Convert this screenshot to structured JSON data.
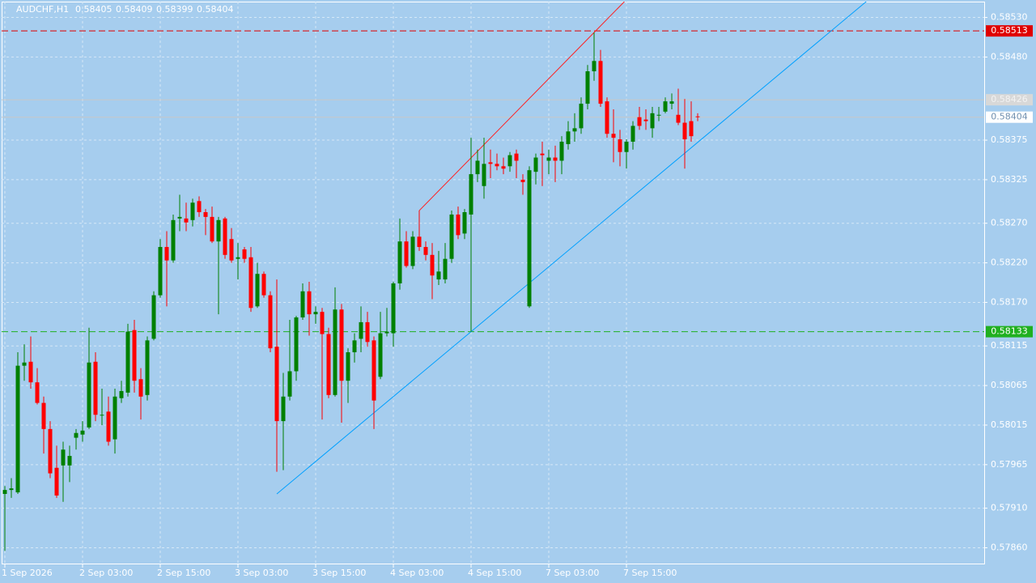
{
  "chart_data": {
    "type": "candlestick",
    "symbol": "AUDCHF,H1",
    "header_ohlc": [
      0.58405,
      0.58409,
      0.58399,
      0.58404
    ],
    "open": [
      0.57928,
      0.57933,
      0.5793,
      0.5809,
      0.58095,
      0.58069,
      0.58043,
      0.5801,
      0.57961,
      0.57964,
      0.57964,
      0.57999,
      0.58003,
      0.58012,
      0.58095,
      0.58028,
      0.58032,
      0.57997,
      0.58049,
      0.58056,
      0.58135,
      0.58073,
      0.58053,
      0.58124,
      0.58179,
      0.5824,
      0.58223,
      0.58276,
      0.58276,
      0.58274,
      0.58298,
      0.58284,
      0.58278,
      0.58247,
      0.58276,
      0.5825,
      0.58225,
      0.58237,
      0.58227,
      0.58165,
      0.58206,
      0.58179,
      0.58114,
      0.5802,
      0.58051,
      0.58083,
      0.58151,
      0.58184,
      0.58155,
      0.58158,
      0.5813,
      0.58053,
      0.58161,
      0.58071,
      0.58107,
      0.58124,
      0.58145,
      0.58122,
      0.58076,
      0.58131,
      0.58131,
      0.58194,
      0.58247,
      0.58216,
      0.58253,
      0.5824,
      0.5823,
      0.58199,
      0.58199,
      0.58225,
      0.58281,
      0.58257,
      0.58281,
      0.58332,
      0.58317,
      0.58347,
      0.58345,
      0.58342,
      0.58342,
      0.58358,
      0.58325,
      0.58165,
      0.58335,
      0.58358,
      0.58349,
      0.58353,
      0.58349,
      0.5837,
      0.58386,
      0.5839,
      0.58421,
      0.58462,
      0.58475,
      0.58424,
      0.58383,
      0.58376,
      0.5836,
      0.58373,
      0.58404,
      0.58401,
      0.5839,
      0.58407,
      0.58411,
      0.58421,
      0.58407,
      0.58397,
      0.58399,
      0.58405
    ],
    "high": [
      0.57938,
      0.57948,
      0.58107,
      0.58117,
      0.58127,
      0.58087,
      0.58051,
      0.5802,
      0.57989,
      0.57994,
      0.57989,
      0.5801,
      0.5802,
      0.58138,
      0.58107,
      0.58061,
      0.58051,
      0.58061,
      0.58071,
      0.58143,
      0.58148,
      0.58087,
      0.58127,
      0.58184,
      0.5825,
      0.5826,
      0.58281,
      0.58306,
      0.58296,
      0.58301,
      0.58304,
      0.58288,
      0.58291,
      0.58278,
      0.58278,
      0.58264,
      0.58245,
      0.5824,
      0.5824,
      0.5822,
      0.58209,
      0.58184,
      0.58199,
      0.58081,
      0.58148,
      0.58153,
      0.58194,
      0.58196,
      0.58165,
      0.58163,
      0.58138,
      0.58189,
      0.58168,
      0.58112,
      0.58131,
      0.58165,
      0.58158,
      0.58127,
      0.58158,
      0.58163,
      0.58196,
      0.58276,
      0.5826,
      0.5826,
      0.58286,
      0.58247,
      0.58245,
      0.58235,
      0.58245,
      0.58286,
      0.58291,
      0.58288,
      0.58378,
      0.58363,
      0.58378,
      0.58363,
      0.58358,
      0.58353,
      0.5836,
      0.58363,
      0.58332,
      0.58342,
      0.58358,
      0.58373,
      0.58363,
      0.58368,
      0.5838,
      0.58399,
      0.58409,
      0.58429,
      0.5847,
      0.58511,
      0.58489,
      0.58429,
      0.58414,
      0.58388,
      0.58376,
      0.58399,
      0.58417,
      0.58414,
      0.58417,
      0.58417,
      0.58429,
      0.58434,
      0.5844,
      0.58427,
      0.58424,
      0.58409
    ],
    "low": [
      0.57856,
      0.57923,
      0.57928,
      0.58071,
      0.58061,
      0.58041,
      0.57979,
      0.57948,
      0.57923,
      0.57918,
      0.57943,
      0.57984,
      0.57994,
      0.5801,
      0.5802,
      0.58015,
      0.57989,
      0.57979,
      0.58043,
      0.58051,
      0.58056,
      0.58022,
      0.58046,
      0.58122,
      0.58176,
      0.58165,
      0.5822,
      0.5826,
      0.5826,
      0.58266,
      0.58278,
      0.58255,
      0.58245,
      0.58155,
      0.58225,
      0.5822,
      0.58199,
      0.5822,
      0.58158,
      0.58163,
      0.58176,
      0.58107,
      0.57956,
      0.57958,
      0.58046,
      0.58071,
      0.58148,
      0.58128,
      0.58143,
      0.58022,
      0.58049,
      0.58051,
      0.58018,
      0.58043,
      0.58094,
      0.58107,
      0.58114,
      0.5801,
      0.58073,
      0.58127,
      0.58114,
      0.58186,
      0.58214,
      0.58212,
      0.58235,
      0.58223,
      0.58174,
      0.58192,
      0.58194,
      0.5822,
      0.5825,
      0.5825,
      0.58133,
      0.58322,
      0.58301,
      0.58327,
      0.58337,
      0.58332,
      0.58335,
      0.58327,
      0.58306,
      0.58163,
      0.58319,
      0.58317,
      0.58332,
      0.58322,
      0.58332,
      0.58363,
      0.58373,
      0.58383,
      0.58414,
      0.5845,
      0.58417,
      0.58378,
      0.58347,
      0.58342,
      0.58339,
      0.58363,
      0.58388,
      0.58388,
      0.58378,
      0.58399,
      0.58409,
      0.58414,
      0.58394,
      0.58339,
      0.58373,
      0.58399
    ],
    "close": [
      0.57933,
      0.57935,
      0.5809,
      0.58094,
      0.58069,
      0.58043,
      0.5801,
      0.57954,
      0.57926,
      0.57984,
      0.57976,
      0.58005,
      0.58008,
      0.58094,
      0.58028,
      0.58028,
      0.57994,
      0.58051,
      0.58058,
      0.58133,
      0.58071,
      0.58051,
      0.58122,
      0.58179,
      0.5824,
      0.58223,
      0.58274,
      0.58278,
      0.58271,
      0.58296,
      0.58284,
      0.58278,
      0.58247,
      0.58274,
      0.5823,
      0.58223,
      0.58227,
      0.58225,
      0.58163,
      0.58206,
      0.58179,
      0.58112,
      0.5802,
      0.58051,
      0.58083,
      0.58151,
      0.58184,
      0.58155,
      0.58158,
      0.5813,
      0.58053,
      0.58161,
      0.58071,
      0.58107,
      0.58122,
      0.58145,
      0.5812,
      0.58046,
      0.58131,
      0.58133,
      0.58194,
      0.58247,
      0.58216,
      0.58253,
      0.5824,
      0.5823,
      0.58204,
      0.58209,
      0.58225,
      0.58281,
      0.58255,
      0.58284,
      0.58332,
      0.58349,
      0.58345,
      0.58345,
      0.58342,
      0.58339,
      0.58356,
      0.58349,
      0.58322,
      0.58337,
      0.58353,
      0.58356,
      0.58353,
      0.58349,
      0.58373,
      0.58386,
      0.5839,
      0.58421,
      0.58462,
      0.58475,
      0.58421,
      0.58383,
      0.58378,
      0.5836,
      0.58373,
      0.58393,
      0.58393,
      0.58399,
      0.58409,
      0.58407,
      0.58424,
      0.58424,
      0.58397,
      0.58376,
      0.5838,
      0.58404
    ],
    "up_color": "#008000",
    "down_color": "#ff0000",
    "ylim": [
      0.57839,
      0.5855
    ],
    "yticks": [
      {
        "value": 0.5853,
        "label": "0.58530"
      },
      {
        "value": 0.5848,
        "label": "0.58480"
      },
      {
        "value": 0.58375,
        "label": "0.58375"
      },
      {
        "value": 0.58325,
        "label": "0.58325"
      },
      {
        "value": 0.5827,
        "label": "0.58270"
      },
      {
        "value": 0.5822,
        "label": "0.58220"
      },
      {
        "value": 0.5817,
        "label": "0.58170"
      },
      {
        "value": 0.58115,
        "label": "0.58115"
      },
      {
        "value": 0.58065,
        "label": "0.58065"
      },
      {
        "value": 0.58015,
        "label": "0.58015"
      },
      {
        "value": 0.57965,
        "label": "0.57965"
      },
      {
        "value": 0.5791,
        "label": "0.57910"
      },
      {
        "value": 0.5786,
        "label": "0.57860"
      }
    ],
    "xticks": [
      {
        "value": 0,
        "label": "1 Sep 2026"
      },
      {
        "value": 12,
        "label": "2 Sep 03:00"
      },
      {
        "value": 24,
        "label": "2 Sep 15:00"
      },
      {
        "value": 36,
        "label": "3 Sep 03:00"
      },
      {
        "value": 48,
        "label": "3 Sep 15:00"
      },
      {
        "value": 60,
        "label": "4 Sep 03:00"
      },
      {
        "value": 72,
        "label": "4 Sep 15:00"
      },
      {
        "value": 84,
        "label": "7 Sep 03:00"
      },
      {
        "value": 96,
        "label": "7 Sep 15:00"
      }
    ],
    "grid": true,
    "price_lines": [
      {
        "value": 0.58513,
        "color": "#e00000",
        "style": "dashed",
        "label_bg": "#e00000",
        "label_color": "#ffffff"
      },
      {
        "value": 0.58426,
        "color": "#c8c8c8",
        "style": "solid",
        "label_bg": "#d8d8d8",
        "label_color": "#f2f2f2"
      },
      {
        "value": 0.58404,
        "color": "#c8c8c8",
        "style": "solid",
        "label_bg": "#ffffff",
        "label_color": "#7090b0"
      },
      {
        "value": 0.58133,
        "color": "#20b020",
        "style": "dashed",
        "label_bg": "#20b020",
        "label_color": "#ffffff"
      }
    ],
    "trendlines": [
      {
        "color": "#ff2020",
        "points": [
          {
            "x": 64,
            "value": 0.58286
          },
          {
            "x": 91,
            "value": 0.58511
          }
        ]
      },
      {
        "color": "#00a0ff",
        "points": [
          {
            "x": 42,
            "value": 0.57928
          },
          {
            "x": 72,
            "value": 0.58133
          }
        ]
      }
    ]
  }
}
